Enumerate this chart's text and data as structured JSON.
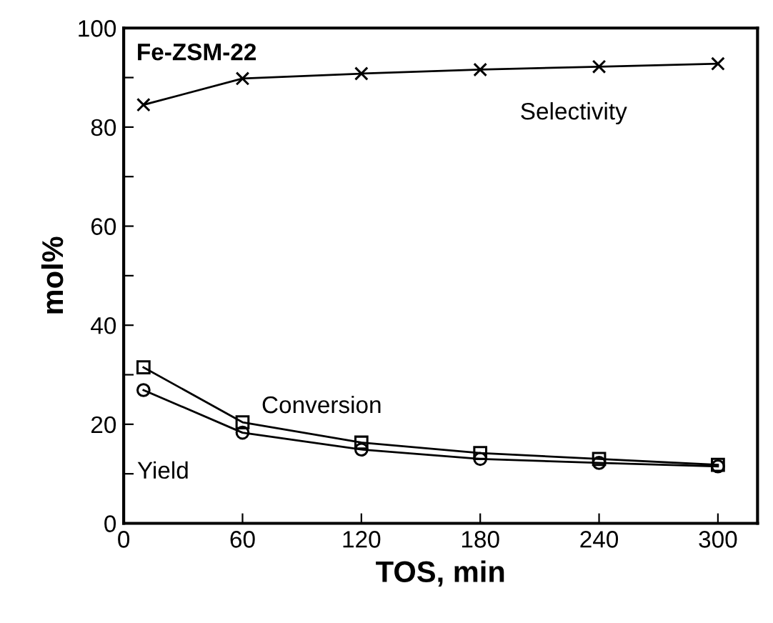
{
  "chart_data": {
    "type": "line",
    "xlabel": "TOS, min",
    "ylabel": "mol%",
    "x": [
      10,
      60,
      120,
      180,
      240,
      300
    ],
    "series": [
      {
        "name": "Selectivity",
        "color": "#000000",
        "marker": "cross",
        "values": [
          84.5,
          89.8,
          90.8,
          91.6,
          92.2,
          92.8
        ]
      },
      {
        "name": "Conversion",
        "color": "#000000",
        "marker": "square",
        "values": [
          31.5,
          20.4,
          16.3,
          14.2,
          13.0,
          11.8
        ]
      },
      {
        "name": "Yield",
        "color": "#000000",
        "marker": "circle",
        "values": [
          26.9,
          18.3,
          14.9,
          13.0,
          12.2,
          11.5
        ]
      }
    ],
    "xlim": [
      0,
      320
    ],
    "xticks": [
      0,
      60,
      120,
      180,
      240,
      300
    ],
    "ylim": [
      0,
      100
    ],
    "yticks": [
      0,
      {
        "value": 10,
        "label": null
      },
      20,
      {
        "value": 30,
        "label": null
      },
      40,
      {
        "value": 50,
        "label": null
      },
      60,
      {
        "value": 70,
        "label": null
      },
      80,
      {
        "value": 90,
        "label": null
      },
      100
    ],
    "annotations": [
      "Fe-ZSM-22"
    ],
    "grid": false,
    "legend": false
  }
}
